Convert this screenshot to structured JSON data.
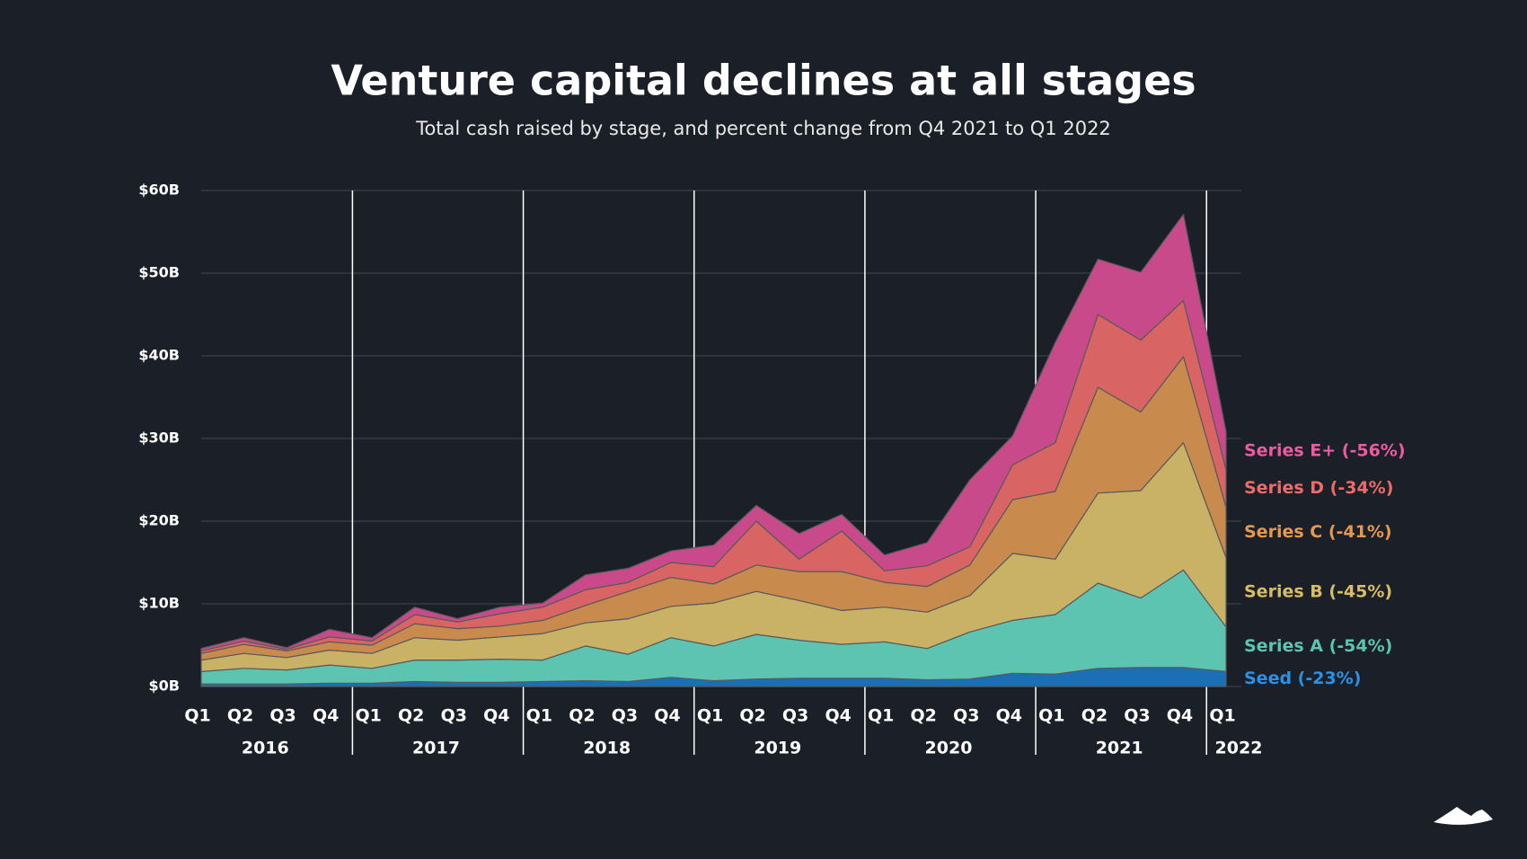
{
  "chart_data": {
    "type": "stacked_area",
    "title": "Venture capital declines at all stages",
    "subtitle": "Total cash raised by stage, and percent change from Q4 2021 to Q1 2022",
    "categories": [
      "Q1",
      "Q2",
      "Q3",
      "Q4",
      "Q1",
      "Q2",
      "Q3",
      "Q4",
      "Q1",
      "Q2",
      "Q3",
      "Q4",
      "Q1",
      "Q2",
      "Q3",
      "Q4",
      "Q1",
      "Q2",
      "Q3",
      "Q4",
      "Q1",
      "Q2",
      "Q3",
      "Q4",
      "Q1"
    ],
    "years": [
      "2016",
      "2017",
      "2018",
      "2019",
      "2020",
      "2021",
      "2022"
    ],
    "ylim": [
      0,
      60
    ],
    "yticks": [
      {
        "value": 0,
        "label": "$0B"
      },
      {
        "value": 10,
        "label": "$10B"
      },
      {
        "value": 20,
        "label": "$20B"
      },
      {
        "value": 30,
        "label": "$30B"
      },
      {
        "value": 40,
        "label": "$40B"
      },
      {
        "value": 50,
        "label": "$50B"
      },
      {
        "value": 60,
        "label": "$60B"
      }
    ],
    "grid": true,
    "series": [
      {
        "name": "Seed (-23%)",
        "color": "#1a6fb5",
        "label_color": "#2b91e6",
        "values": [
          0.3,
          0.3,
          0.3,
          0.4,
          0.4,
          0.6,
          0.5,
          0.5,
          0.6,
          0.7,
          0.6,
          1.1,
          0.7,
          0.9,
          1.0,
          1.0,
          1.0,
          0.8,
          0.9,
          1.6,
          1.5,
          2.2,
          2.3,
          2.3,
          1.8
        ]
      },
      {
        "name": "Series A (-54%)",
        "color": "#5cc4b0",
        "label_color": "#5cc4b0",
        "values": [
          1.5,
          1.9,
          1.7,
          2.2,
          1.8,
          2.6,
          2.7,
          2.8,
          2.6,
          4.2,
          3.3,
          4.8,
          4.2,
          5.4,
          4.6,
          4.1,
          4.4,
          3.8,
          5.7,
          6.4,
          7.2,
          10.3,
          8.4,
          11.8,
          5.4
        ]
      },
      {
        "name": "Series B (-45%)",
        "color": "#c9b265",
        "label_color": "#d9bd62",
        "values": [
          1.4,
          1.8,
          1.5,
          1.8,
          1.8,
          2.7,
          2.4,
          2.7,
          3.2,
          2.8,
          4.3,
          3.8,
          5.2,
          5.2,
          4.8,
          4.1,
          4.2,
          4.4,
          4.4,
          8.1,
          6.7,
          10.9,
          13.0,
          15.4,
          8.4
        ]
      },
      {
        "name": "Series C (-41%)",
        "color": "#c98a4e",
        "label_color": "#e3994f",
        "values": [
          0.8,
          1.1,
          0.8,
          1.0,
          1.0,
          1.7,
          1.4,
          1.3,
          1.6,
          2.1,
          3.3,
          3.5,
          2.3,
          3.2,
          3.5,
          4.7,
          3.0,
          3.1,
          3.7,
          6.5,
          8.2,
          12.8,
          9.5,
          10.4,
          6.1
        ]
      },
      {
        "name": "Series D (-34%)",
        "color": "#d96464",
        "label_color": "#ee6b6b",
        "values": [
          0.3,
          0.4,
          0.2,
          0.6,
          0.5,
          1.1,
          0.8,
          1.5,
          1.6,
          1.9,
          1.1,
          1.8,
          2.1,
          5.3,
          1.5,
          4.9,
          1.4,
          2.5,
          2.2,
          4.2,
          5.9,
          8.8,
          8.7,
          6.8,
          4.5
        ]
      },
      {
        "name": "Series E+ (-56%)",
        "color": "#c94a8a",
        "label_color": "#ec5aa2",
        "values": [
          0.3,
          0.4,
          0.2,
          0.9,
          0.4,
          0.9,
          0.4,
          0.8,
          0.5,
          1.8,
          1.7,
          1.4,
          2.6,
          1.9,
          3.1,
          2.0,
          1.9,
          2.8,
          8.1,
          3.5,
          12.1,
          6.7,
          8.2,
          10.4,
          4.6
        ]
      }
    ]
  }
}
